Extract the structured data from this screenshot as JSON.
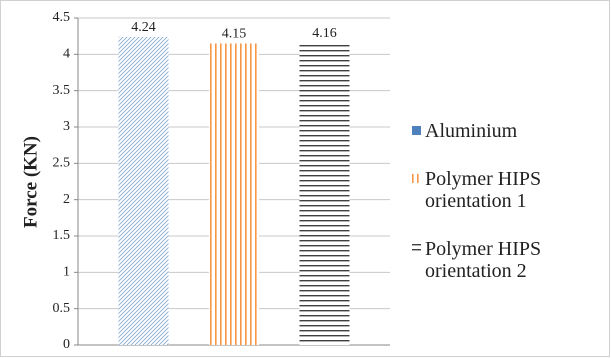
{
  "chart_data": {
    "type": "bar",
    "y_label": "Force (KN)",
    "categories": [
      null
    ],
    "series": [
      {
        "name": "Aluminium",
        "color": "#4f81bd",
        "pattern": "diagonal",
        "values": [
          4.24
        ]
      },
      {
        "name": "Polymer HIPS orientation 1",
        "color": "#f79646",
        "pattern": "vertical",
        "values": [
          4.15
        ]
      },
      {
        "name": "Polymer HIPS orientation 2",
        "color": "#404040",
        "pattern": "horizontal",
        "values": [
          4.16
        ]
      }
    ],
    "ylim": [
      0,
      4.5
    ],
    "yticks": [
      0,
      0.5,
      1,
      1.5,
      2,
      2.5,
      3,
      3.5,
      4,
      4.5
    ],
    "grid": true,
    "legend": "right",
    "data_labels": true
  }
}
